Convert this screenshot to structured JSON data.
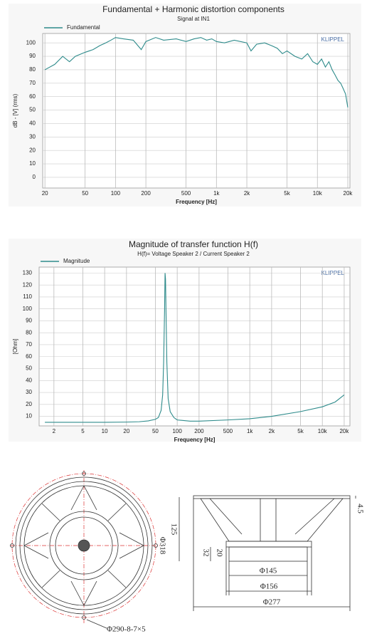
{
  "chart_data": [
    {
      "type": "line",
      "title": "Fundamental + Harmonic distortion components",
      "subtitle": "Signal at IN1",
      "y_label": "dB - [V] (rms)",
      "x_label": "Frequency [Hz]",
      "watermark": "KLIPPEL",
      "log_x": true,
      "grid": true,
      "x": [
        20,
        25,
        30,
        35,
        40,
        50,
        60,
        70,
        80,
        90,
        100,
        120,
        150,
        180,
        200,
        250,
        300,
        400,
        500,
        600,
        700,
        800,
        900,
        1000,
        1200,
        1500,
        2000,
        2200,
        2500,
        3000,
        3500,
        4000,
        4500,
        5000,
        6000,
        7000,
        8000,
        9000,
        10000,
        11000,
        12000,
        13000,
        14000,
        15000,
        16000,
        17000,
        18000,
        19000,
        20000
      ],
      "series": [
        {
          "name": "Fundamental",
          "color": "#2e8b8b",
          "values": [
            80,
            84,
            90,
            86,
            90,
            93,
            95,
            98,
            100,
            102,
            104,
            103,
            102,
            95,
            101,
            104,
            102,
            103,
            101,
            103,
            104,
            102,
            103,
            101,
            100,
            102,
            100,
            94,
            99,
            100,
            98,
            96,
            92,
            94,
            90,
            88,
            92,
            86,
            84,
            88,
            82,
            86,
            80,
            76,
            72,
            70,
            66,
            62,
            52
          ]
        }
      ],
      "xlim": [
        19,
        21000
      ],
      "ylim": [
        -8,
        107
      ],
      "xticks": [
        20,
        50,
        100,
        200,
        500,
        {
          "value": 1000,
          "label": "1k"
        },
        {
          "value": 2000,
          "label": "2k"
        },
        {
          "value": 5000,
          "label": "5k"
        },
        {
          "value": 10000,
          "label": "10k"
        },
        {
          "value": 20000,
          "label": "20k"
        }
      ],
      "yticks": [
        0,
        10,
        20,
        30,
        40,
        50,
        60,
        70,
        80,
        90,
        100
      ]
    },
    {
      "type": "line",
      "title": "Magnitude of transfer function H(f)",
      "subtitle": "H(f)= Voltage Speaker 2 / Current Speaker 2",
      "y_label": "[Ohm]",
      "x_label": "Frequency [Hz]",
      "watermark": "KLIPPEL",
      "log_x": true,
      "grid": true,
      "x": [
        1.5,
        5,
        10,
        20,
        30,
        40,
        50,
        55,
        60,
        63,
        65,
        67,
        68,
        69,
        70,
        72,
        75,
        80,
        90,
        100,
        150,
        200,
        500,
        1000,
        2000,
        5000,
        10000,
        15000,
        20000
      ],
      "series": [
        {
          "name": "Magnitude",
          "color": "#2e8b8b",
          "values": [
            5,
            5,
            5,
            5.2,
            5.5,
            6.2,
            7.5,
            9,
            15,
            28,
            55,
            100,
            130,
            125,
            100,
            55,
            25,
            14,
            9,
            7,
            6,
            6,
            7,
            8,
            10,
            14,
            18,
            22,
            28
          ]
        }
      ],
      "xlim": [
        1.25,
        24000
      ],
      "ylim": [
        2,
        135
      ],
      "xticks": [
        2,
        5,
        10,
        20,
        50,
        100,
        200,
        500,
        {
          "value": 1000,
          "label": "1k"
        },
        {
          "value": 2000,
          "label": "2k"
        },
        {
          "value": 5000,
          "label": "5k"
        },
        {
          "value": 10000,
          "label": "10k"
        },
        {
          "value": 20000,
          "label": "20k"
        }
      ],
      "yticks": [
        10,
        20,
        30,
        40,
        50,
        60,
        70,
        80,
        90,
        100,
        110,
        120,
        130
      ]
    }
  ],
  "drawing": {
    "hole_spec": "Φ290-8-7×5",
    "front_diameter": "Φ318",
    "depth": "125",
    "flange": "4.5",
    "magnet_height": "32",
    "plate_height": "20",
    "magnet_diameter": "Φ145",
    "plate_diameter": "Φ156",
    "overall_diameter": "Φ277"
  }
}
